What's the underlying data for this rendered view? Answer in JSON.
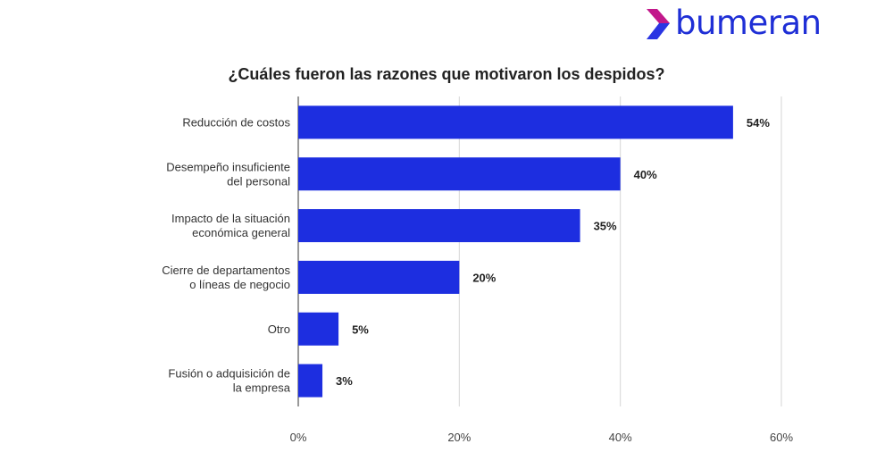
{
  "brand": {
    "name": "bumeran",
    "logo_icon": "bumeran-chevron-logo",
    "colors": {
      "icon_top": "#c2188b",
      "icon_bottom": "#2a35e3",
      "text": "#1f2fd6"
    }
  },
  "chart_data": {
    "type": "bar",
    "orientation": "horizontal",
    "title": "¿Cuáles fueron las razones que motivaron los despidos?",
    "categories": [
      [
        "Reducción de costos"
      ],
      [
        "Desempeño insuficiente",
        "del personal"
      ],
      [
        "Impacto de la situación",
        "económica general"
      ],
      [
        "Cierre de departamentos",
        "o líneas de negocio"
      ],
      [
        "Otro"
      ],
      [
        "Fusión o adquisición de",
        "la empresa"
      ]
    ],
    "values": [
      54,
      40,
      35,
      20,
      5,
      3
    ],
    "value_labels": [
      "54%",
      "40%",
      "35%",
      "20%",
      "5%",
      "3%"
    ],
    "xlim": [
      0,
      60
    ],
    "xticks": [
      0,
      20,
      40,
      60
    ],
    "xtick_labels": [
      "0%",
      "20%",
      "40%",
      "60%"
    ],
    "bar_color": "#1d2ee0",
    "grid": true,
    "legend": "none"
  }
}
